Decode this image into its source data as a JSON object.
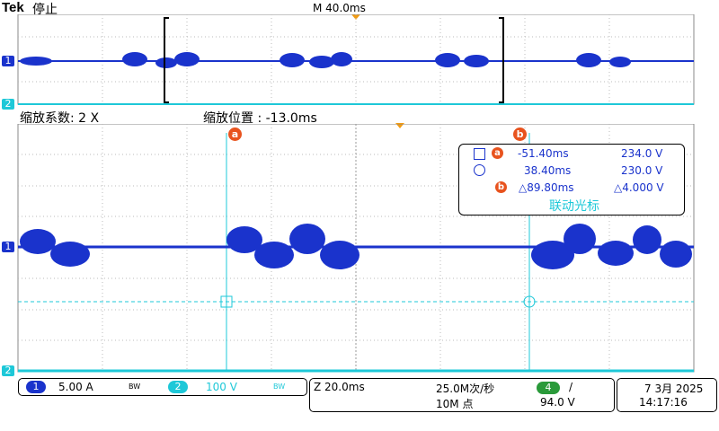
{
  "header": {
    "brand": "Tek",
    "state": "停止",
    "timebase": "M 40.0ms"
  },
  "zoom": {
    "factor_label": "缩放系数: 2 X",
    "position_label": "缩放位置 : -13.0ms"
  },
  "channel_markers": {
    "ch1": "1",
    "ch2": "2"
  },
  "cursors": {
    "a_label": "a",
    "b_label": "b"
  },
  "readout": {
    "row_a_time": "-51.40ms",
    "row_a_value": "234.0 V",
    "row_b_time": "38.40ms",
    "row_b_value": "230.0 V",
    "delta_time": "△89.80ms",
    "delta_value": "△4.000 V",
    "link_label": "联动光标"
  },
  "status": {
    "ch1_num": "1",
    "ch1_scale": "5.00 A",
    "ch1_bw": "BW",
    "ch2_num": "2",
    "ch2_scale": "100 V",
    "ch2_bw": "BW",
    "zoom_time": "Z 20.0ms",
    "sample_rate": "25.0M次/秒",
    "record_length": "10M 点",
    "trig_ch": "4",
    "trig_slope": "/",
    "trig_level": "94.0 V",
    "date": "7 3月 2025",
    "time": "14:17:16"
  },
  "colors": {
    "ch1": "#1a33cc",
    "ch2": "#1ec8d8",
    "cursor_tag": "#e8531e",
    "trigger": "#f39c12"
  }
}
